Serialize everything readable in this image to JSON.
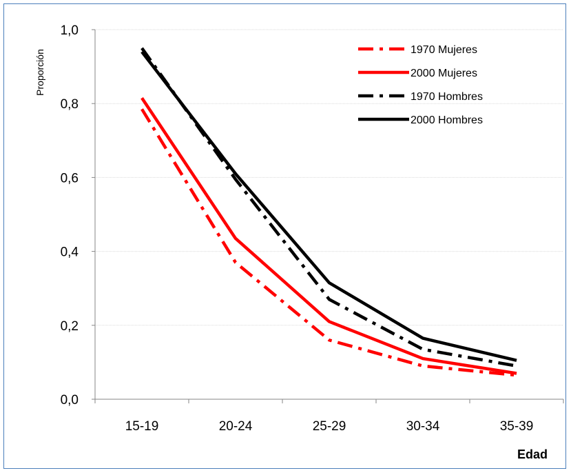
{
  "chart_data": {
    "type": "line",
    "title": "",
    "xlabel": "Edad",
    "ylabel": "Proporción",
    "categories": [
      "15-19",
      "20-24",
      "25-29",
      "30-34",
      "35-39"
    ],
    "ylim": [
      0,
      1
    ],
    "yticks": [
      "0,0",
      "0,2",
      "0,4",
      "0,6",
      "0,8",
      "1,0"
    ],
    "ytick_values": [
      0,
      0.2,
      0.4,
      0.6,
      0.8,
      1.0
    ],
    "grid": true,
    "legend_position": "top-right",
    "series": [
      {
        "name": "1970 Mujeres",
        "color": "#ff0000",
        "dash": "dash-dot",
        "values": [
          0.785,
          0.37,
          0.16,
          0.09,
          0.065
        ]
      },
      {
        "name": "2000 Mujeres",
        "color": "#ff0000",
        "dash": "solid",
        "values": [
          0.815,
          0.435,
          0.21,
          0.11,
          0.07
        ]
      },
      {
        "name": "1970 Hombres",
        "color": "#000000",
        "dash": "dash-dot",
        "values": [
          0.95,
          0.595,
          0.27,
          0.135,
          0.09
        ]
      },
      {
        "name": "2000 Hombres",
        "color": "#000000",
        "dash": "solid",
        "values": [
          0.94,
          0.61,
          0.315,
          0.165,
          0.105
        ]
      }
    ]
  }
}
